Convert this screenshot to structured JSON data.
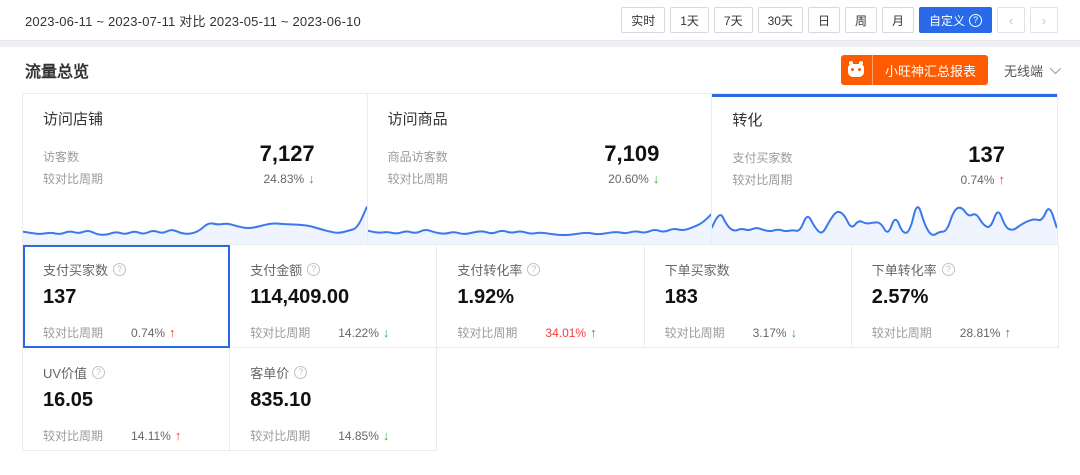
{
  "topbar": {
    "date_range": "2023-06-11 ~ 2023-07-11 对比 2023-05-11 ~ 2023-06-10",
    "periods": [
      "实时",
      "1天",
      "7天",
      "30天",
      "日",
      "周",
      "月"
    ],
    "custom_label": "自定义",
    "custom_help": "?",
    "prev_label": "‹",
    "next_label": "›"
  },
  "header": {
    "title": "流量总览",
    "report_button_label": "小旺神汇总报表",
    "channel_value": "无线端"
  },
  "overview_cards": [
    {
      "title": "访问店铺",
      "metric_label": "访客数",
      "value": "7,127",
      "compare_label": "较对比周期",
      "change": "24.83%",
      "direction": "down"
    },
    {
      "title": "访问商品",
      "metric_label": "商品访客数",
      "value": "7,109",
      "compare_label": "较对比周期",
      "change": "20.60%",
      "direction": "down"
    },
    {
      "title": "转化",
      "metric_label": "支付买家数",
      "value": "137",
      "compare_label": "较对比周期",
      "change": "0.74%",
      "direction": "up"
    }
  ],
  "metrics": [
    {
      "title": "支付买家数",
      "help": "?",
      "value": "137",
      "compare_label": "较对比周期",
      "change": "0.74%",
      "direction": "up"
    },
    {
      "title": "支付金额",
      "help": "?",
      "value": "114,409.00",
      "compare_label": "较对比周期",
      "change": "14.22%",
      "direction": "down"
    },
    {
      "title": "支付转化率",
      "help": "?",
      "value": "1.92%",
      "compare_label": "较对比周期",
      "change": "34.01%",
      "direction": "up"
    },
    {
      "title": "下单买家数",
      "help": "",
      "value": "183",
      "compare_label": "较对比周期",
      "change": "3.17%",
      "direction": "down"
    },
    {
      "title": "下单转化率",
      "help": "?",
      "value": "2.57%",
      "compare_label": "较对比周期",
      "change": "28.81%",
      "direction": "up"
    },
    {
      "title": "UV价值",
      "help": "?",
      "value": "16.05",
      "compare_label": "较对比周期",
      "change": "14.11%",
      "direction": "up"
    },
    {
      "title": "客单价",
      "help": "?",
      "value": "835.10",
      "compare_label": "较对比周期",
      "change": "14.85%",
      "direction": "down"
    }
  ],
  "colors": {
    "accent_blue": "#2a6ae9",
    "spark_line": "#3a78ec",
    "spark_fill": "rgba(58,120,236,0.08)",
    "up_red": "#f23c3c",
    "down_green": "#2fb344",
    "brand_orange": "#fe5b00"
  },
  "chart_data": {
    "type": "area",
    "note": "三张卡片底部的迷你趋势图（无坐标轴），数值为相对高度0-1",
    "sparklines": [
      {
        "name": "访问店铺-访客数趋势",
        "values": [
          0.2,
          0.16,
          0.14,
          0.18,
          0.13,
          0.22,
          0.15,
          0.24,
          0.13,
          0.12,
          0.2,
          0.13,
          0.22,
          0.13,
          0.24,
          0.15,
          0.26,
          0.16,
          0.14,
          0.22,
          0.42,
          0.36,
          0.4,
          0.33,
          0.28,
          0.3,
          0.36,
          0.4,
          0.38,
          0.37,
          0.36,
          0.33,
          0.26,
          0.2,
          0.16,
          0.22,
          0.28,
          0.78
        ]
      },
      {
        "name": "访问商品-商品访客数趋势",
        "values": [
          0.22,
          0.16,
          0.2,
          0.14,
          0.22,
          0.15,
          0.26,
          0.18,
          0.14,
          0.2,
          0.13,
          0.18,
          0.22,
          0.14,
          0.24,
          0.16,
          0.22,
          0.14,
          0.18,
          0.15,
          0.12,
          0.12,
          0.15,
          0.18,
          0.13,
          0.16,
          0.2,
          0.15,
          0.22,
          0.16,
          0.26,
          0.18,
          0.28,
          0.22,
          0.3,
          0.4,
          0.62
        ]
      },
      {
        "name": "转化-支付买家数趋势",
        "values": [
          0.3,
          0.72,
          0.35,
          0.2,
          0.28,
          0.22,
          0.3,
          0.24,
          0.2,
          0.26,
          0.2,
          0.24,
          0.2,
          0.65,
          0.3,
          0.12,
          0.45,
          0.7,
          0.62,
          0.25,
          0.48,
          0.38,
          0.42,
          0.42,
          0.1,
          0.6,
          0.15,
          0.2,
          0.95,
          0.35,
          0.08,
          0.2,
          0.2,
          0.72,
          0.8,
          0.55,
          0.65,
          0.35,
          0.28,
          0.78,
          0.3,
          0.22,
          0.35,
          0.45,
          0.5,
          0.45,
          0.85,
          0.3
        ]
      }
    ]
  }
}
